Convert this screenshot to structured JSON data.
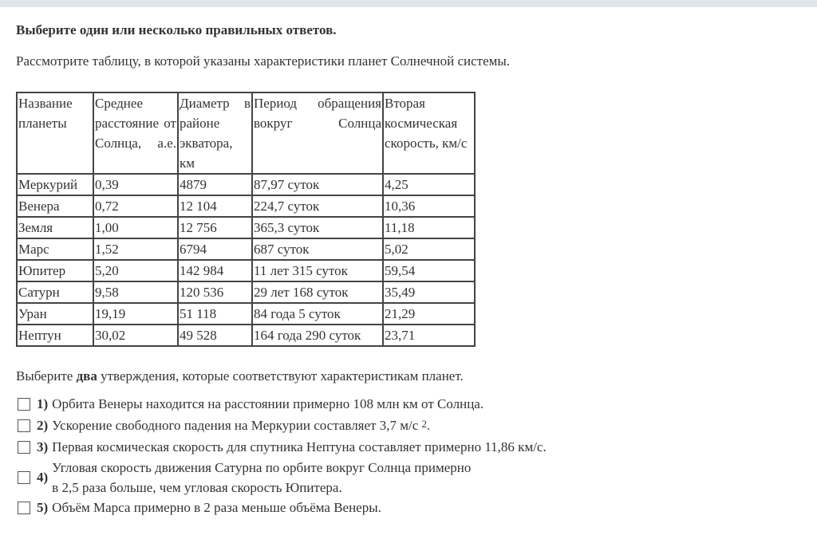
{
  "instruction": "Выберите один или несколько правильных ответов.",
  "intro": "Рассмотрите таблицу, в которой указаны характеристики планет Солнечной системы.",
  "table": {
    "headers": [
      "Название планеты",
      "Среднее расстояние от Солнца, а.е.",
      "Диаметр в районе экватора, км",
      "Период обращения вокруг Солнца",
      "Вторая космическая скорость, км/с"
    ],
    "rows": [
      [
        "Меркурий",
        "0,39",
        "4879",
        "87,97 суток",
        "4,25"
      ],
      [
        "Венера",
        "0,72",
        "12 104",
        "224,7 суток",
        "10,36"
      ],
      [
        "Земля",
        "1,00",
        "12 756",
        "365,3 суток",
        "11,18"
      ],
      [
        "Марс",
        "1,52",
        "6794",
        "687 суток",
        "5,02"
      ],
      [
        "Юпитер",
        "5,20",
        "142 984",
        "11 лет 315 суток",
        "59,54"
      ],
      [
        "Сатурн",
        "9,58",
        "120 536",
        "29 лет 168 суток",
        "35,49"
      ],
      [
        "Уран",
        "19,19",
        "51 118",
        "84 года 5 суток",
        "21,29"
      ],
      [
        "Нептун",
        "30,02",
        "49 528",
        "164 года 290 суток",
        "23,71"
      ]
    ]
  },
  "question": {
    "pre": "Выберите ",
    "bold": "два",
    "post": " утверждения, которые соответствуют характеристикам планет."
  },
  "options": [
    {
      "num": "1)",
      "text": "Орбита Венеры находится на расстоянии примерно 108 млн км от Солнца.",
      "checked": false
    },
    {
      "num": "2)",
      "text": "Ускорение свободного падения на Меркурии составляет 3,7 м/с",
      "sup": "2",
      "tail": ".",
      "checked": false
    },
    {
      "num": "3)",
      "text": "Первая космическая скорость для спутника Нептуна составляет примерно 11,86 км/с.",
      "checked": false
    },
    {
      "num": "4)",
      "line1": "Угловая скорость движения Сатурна по орбите вокруг Солнца примерно",
      "line2": "в 2,5 раза больше, чем угловая скорость Юпитера.",
      "checked": false
    },
    {
      "num": "5)",
      "text": "Объём Марса примерно в 2 раза меньше объёма Венеры.",
      "checked": false
    }
  ]
}
